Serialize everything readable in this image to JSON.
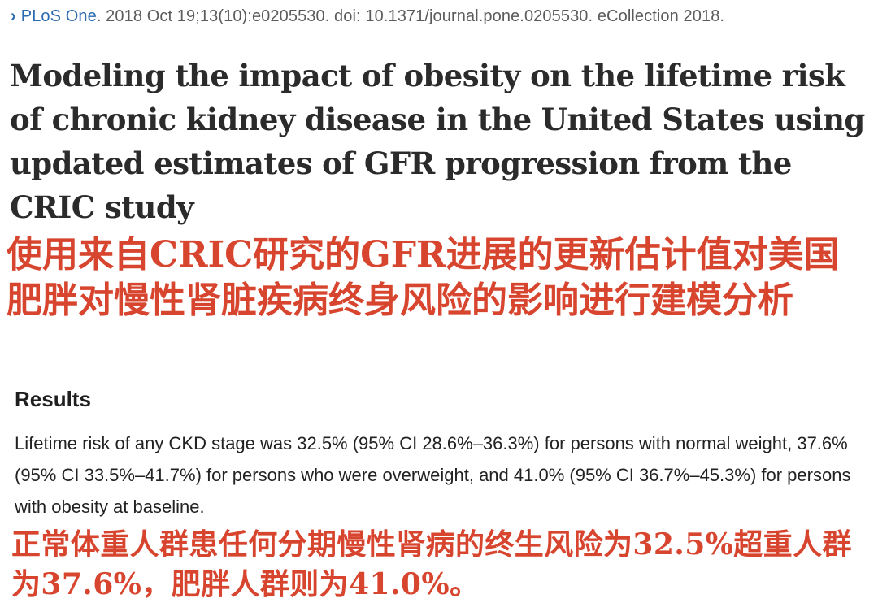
{
  "citation": {
    "chevron": "›",
    "journal": "PLoS One",
    "details": ". 2018 Oct 19;13(10):e0205530. doi: 10.1371/journal.pone.0205530. eCollection 2018."
  },
  "title_en": "Modeling the impact of obesity on the lifetime risk of chronic kidney disease in the United States using updated estimates of GFR progression from the CRIC study",
  "title_zh": "使用来自CRIC研究的GFR进展的更新估计值对美国肥胖对慢性肾脏疾病终身风险的影响进行建模分析",
  "results": {
    "heading": "Results",
    "text_en": "Lifetime risk of any CKD stage was 32.5% (95% CI 28.6%–36.3%) for persons with normal weight, 37.6% (95% CI 33.5%–41.7%) for persons who were overweight, and 41.0% (95% CI 36.7%–45.3%) for persons with obesity at baseline.",
    "text_zh": "正常体重人群患任何分期慢性肾病的终生风险为32.5%超重人群为37.6%，肥胖人群则为41.0%。"
  },
  "colors": {
    "link_blue": "#2a6ab0",
    "meta_gray": "#5b5b5b",
    "title_dark": "#2b2b2b",
    "translation_red": "#d8452f"
  }
}
